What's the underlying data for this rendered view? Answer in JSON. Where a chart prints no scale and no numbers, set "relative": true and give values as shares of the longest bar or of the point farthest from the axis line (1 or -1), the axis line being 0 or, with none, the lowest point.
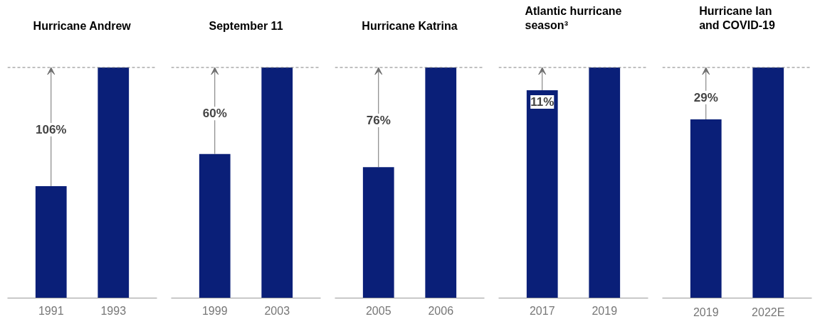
{
  "chart_data": [
    {
      "type": "bar",
      "title": "Hurricane Andrew",
      "categories": [
        "1991",
        "1993"
      ],
      "values": [
        0.485,
        1
      ],
      "color": "#0a1f78",
      "relative": true,
      "grid": false,
      "ref_lines": [
        {
          "axis": "y",
          "value": 1,
          "color": "#808080",
          "line_style": "dashed"
        }
      ],
      "annotations": [
        {
          "text": "106%",
          "x": "1991",
          "y": 0.73
        }
      ]
    },
    {
      "type": "bar",
      "title": "September 11",
      "categories": [
        "1999",
        "2003"
      ],
      "values": [
        0.625,
        1
      ],
      "color": "#0a1f78",
      "relative": true,
      "grid": false,
      "ref_lines": [
        {
          "axis": "y",
          "value": 1,
          "color": "#808080",
          "line_style": "dashed"
        }
      ],
      "annotations": [
        {
          "text": "60%",
          "x": "1999",
          "y": 0.8
        }
      ]
    },
    {
      "type": "bar",
      "title": "Hurricane Katrina",
      "categories": [
        "2005",
        "2006"
      ],
      "values": [
        0.568,
        1
      ],
      "color": "#0a1f78",
      "relative": true,
      "grid": false,
      "ref_lines": [
        {
          "axis": "y",
          "value": 1,
          "color": "#808080",
          "line_style": "dashed"
        }
      ],
      "annotations": [
        {
          "text": "76%",
          "x": "2005",
          "y": 0.77
        }
      ]
    },
    {
      "type": "bar",
      "title": "Atlantic hurricane\nseason³",
      "categories": [
        "2017",
        "2019"
      ],
      "values": [
        0.901,
        1
      ],
      "color": "#0a1f78",
      "relative": true,
      "grid": false,
      "ref_lines": [
        {
          "axis": "y",
          "value": 1,
          "color": "#808080",
          "line_style": "dashed"
        }
      ],
      "annotations": [
        {
          "text": "11%",
          "x": "2017",
          "y": 0.85
        }
      ]
    },
    {
      "type": "bar",
      "title": "Hurricane Ian\nand COVID-19",
      "categories": [
        "2019",
        "2022E"
      ],
      "values": [
        0.775,
        1
      ],
      "color": "#0a1f78",
      "relative": true,
      "grid": false,
      "ref_lines": [
        {
          "axis": "y",
          "value": 1,
          "color": "#808080",
          "line_style": "dashed"
        }
      ],
      "annotations": [
        {
          "text": "29%",
          "x": "2019",
          "y": 0.87
        }
      ]
    }
  ]
}
